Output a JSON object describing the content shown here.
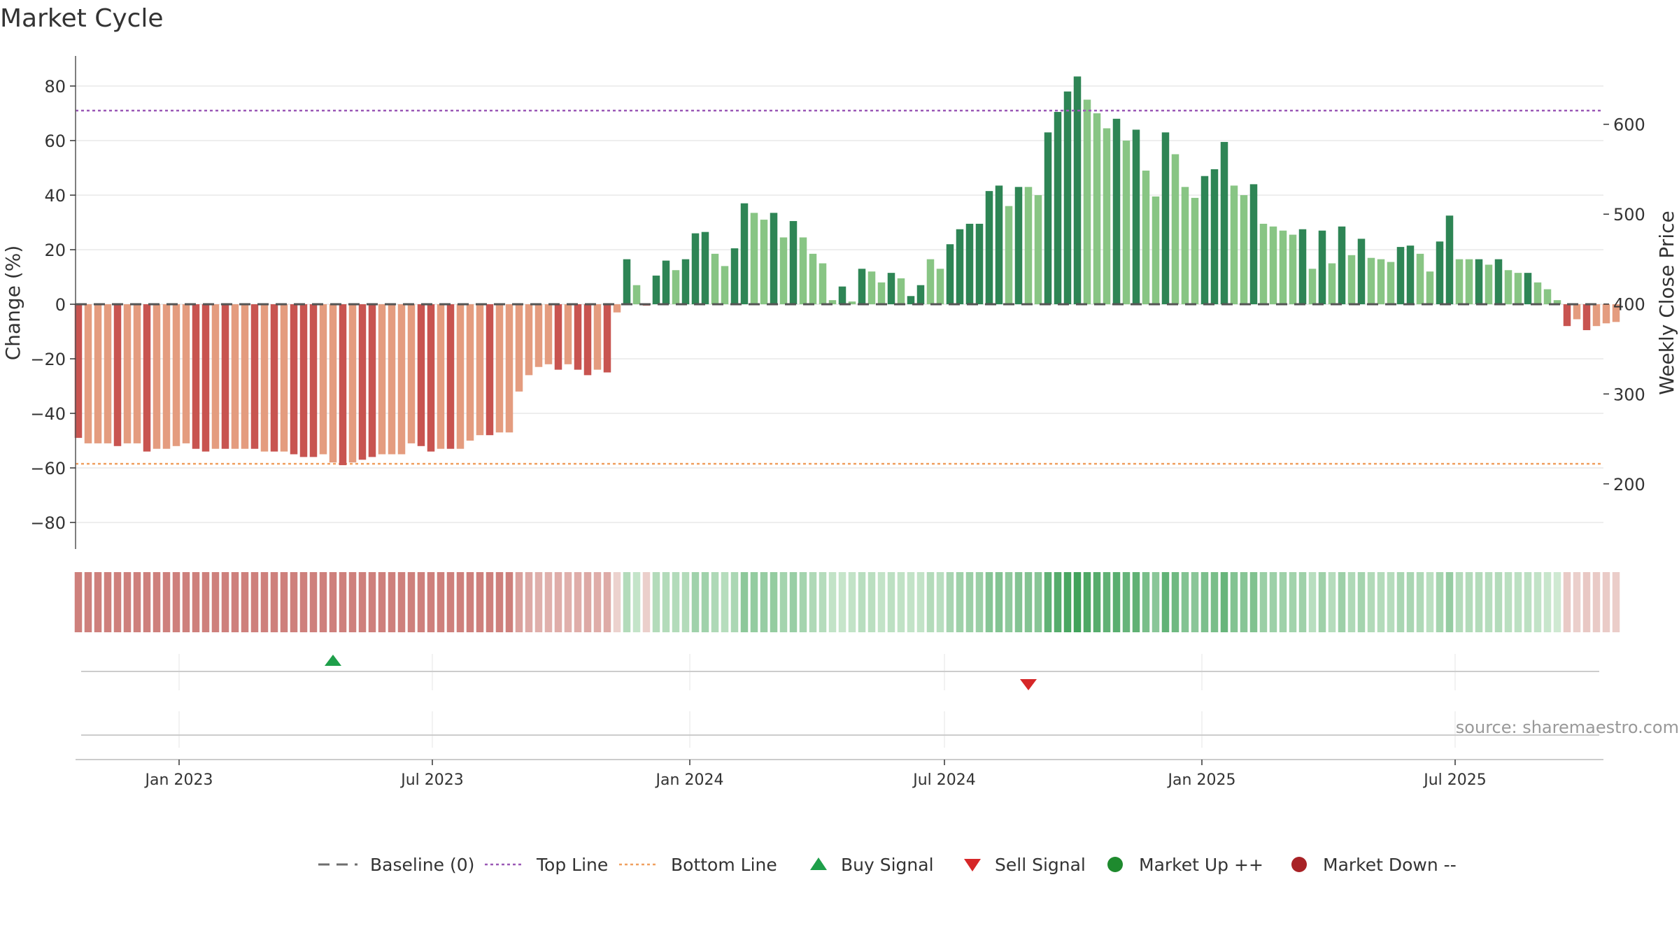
{
  "chart_data": {
    "type": "bar",
    "title": "Market Cycle",
    "ylabel_left": "Change (%)",
    "ylabel_right": "Weekly Close Price",
    "ylim_left": [
      -90,
      90
    ],
    "ylim_right": [
      127.5,
      676
    ],
    "y_ticks_left": [
      "80",
      "60",
      "40",
      "20",
      "0",
      "−20",
      "−40",
      "−60",
      "−80"
    ],
    "y_ticks_left_values": [
      80,
      60,
      40,
      20,
      0,
      -20,
      -40,
      -60,
      -80
    ],
    "y_ticks_right": [
      "600",
      "500",
      "400",
      "300",
      "200"
    ],
    "y_ticks_right_values": [
      600,
      500,
      400,
      300,
      200
    ],
    "x_ticks": [
      "Jan 2023",
      "Jul 2023",
      "Jan 2024",
      "Jul 2024",
      "Jan 2025",
      "Jul 2025"
    ],
    "x_ticks_dates": [
      "2023-01-01",
      "2023-07-01",
      "2024-01-01",
      "2024-07-01",
      "2025-01-01",
      "2025-07-01"
    ],
    "x_range": [
      "2022-10-19",
      "2025-10-15"
    ],
    "first_week": "2022-10-21",
    "week_days": 7,
    "grid": true,
    "top_line": 71,
    "bottom_line": -58.5,
    "baseline": 0,
    "series": [
      {
        "name": "Change (%)",
        "values": [
          -49,
          -51,
          -51,
          -51,
          -52,
          -51,
          -51,
          -54,
          -53,
          -53,
          -52,
          -51,
          -53,
          -54,
          -53,
          -53,
          -53,
          -53,
          -53,
          -54,
          -54,
          -54,
          -55,
          -56,
          -56,
          -55,
          -58,
          -59,
          -58,
          -57,
          -56,
          -55,
          -55,
          -55,
          -51,
          -52,
          -54,
          -53,
          -53,
          -53,
          -50,
          -48,
          -48,
          -47,
          -47,
          -32,
          -26,
          -23,
          -22,
          -24,
          -22,
          -24,
          -26,
          -24,
          -25,
          -3,
          16.5,
          7,
          -0.5,
          10.5,
          16,
          12.5,
          16.5,
          26,
          26.5,
          18.5,
          14,
          20.5,
          37,
          33.5,
          31,
          33.5,
          24.5,
          30.5,
          24.5,
          18.5,
          15,
          1.5,
          6.5,
          1,
          13,
          12,
          8,
          11.5,
          9.5,
          3,
          7,
          16.5,
          13,
          22,
          27.5,
          29.5,
          29.5,
          41.5,
          43.5,
          36,
          43,
          43,
          40,
          63,
          70.5,
          78,
          83.5,
          75,
          70,
          64.5,
          68,
          60,
          64,
          49,
          39.5,
          63,
          55,
          43,
          39,
          47,
          49.5,
          59.5,
          43.5,
          40,
          44,
          29.5,
          28.5,
          27,
          25.5,
          27.5,
          13,
          27,
          15,
          28.5,
          18,
          24,
          17,
          16.5,
          15.5,
          21,
          21.5,
          18.5,
          12,
          23,
          32.5,
          16.5,
          16.5,
          16.5,
          14.5,
          16.5,
          12.5,
          11.5,
          11.5,
          8,
          5.5,
          1.5,
          -8,
          -5.5,
          -9.5,
          -8,
          -7,
          -6.5
        ],
        "shade": [
          "d",
          "l",
          "l",
          "l",
          "d",
          "l",
          "l",
          "d",
          "l",
          "l",
          "l",
          "l",
          "d",
          "d",
          "l",
          "d",
          "l",
          "l",
          "d",
          "l",
          "d",
          "l",
          "d",
          "d",
          "d",
          "l",
          "l",
          "d",
          "l",
          "d",
          "d",
          "l",
          "l",
          "l",
          "l",
          "d",
          "d",
          "l",
          "d",
          "l",
          "l",
          "l",
          "d",
          "l",
          "l",
          "l",
          "l",
          "l",
          "l",
          "d",
          "l",
          "d",
          "d",
          "l",
          "d",
          "l",
          "d",
          "l",
          "d",
          "d",
          "d",
          "l",
          "d",
          "d",
          "d",
          "l",
          "l",
          "d",
          "d",
          "l",
          "l",
          "d",
          "l",
          "d",
          "l",
          "l",
          "l",
          "l",
          "d",
          "l",
          "d",
          "l",
          "l",
          "d",
          "l",
          "d",
          "d",
          "l",
          "l",
          "d",
          "d",
          "d",
          "d",
          "d",
          "d",
          "l",
          "d",
          "l",
          "l",
          "d",
          "d",
          "d",
          "d",
          "l",
          "l",
          "l",
          "d",
          "l",
          "d",
          "l",
          "l",
          "d",
          "l",
          "l",
          "l",
          "d",
          "d",
          "d",
          "l",
          "l",
          "d",
          "l",
          "l",
          "l",
          "l",
          "d",
          "l",
          "d",
          "l",
          "d",
          "l",
          "d",
          "l",
          "l",
          "l",
          "d",
          "d",
          "l",
          "l",
          "d",
          "d",
          "l",
          "l",
          "d",
          "l",
          "d",
          "l",
          "l",
          "d",
          "l",
          "l",
          "l",
          "d",
          "l",
          "d",
          "l",
          "l",
          "l"
        ]
      }
    ],
    "heat_strip": [
      -53,
      -53,
      -53,
      -53,
      -53,
      -53,
      -53,
      -53,
      -53,
      -53,
      -53,
      -53,
      -53,
      -53,
      -53,
      -53,
      -53,
      -53,
      -53,
      -53,
      -53,
      -53,
      -53,
      -53,
      -53,
      -53,
      -56,
      -56,
      -53,
      -53,
      -53,
      -53,
      -53,
      -53,
      -53,
      -53,
      -53,
      -53,
      -53,
      -53,
      -53,
      -48,
      -48,
      -47,
      -47,
      -30,
      -26,
      -23,
      -22,
      -24,
      -22,
      -24,
      -26,
      -24,
      -25,
      -3,
      16,
      7,
      -5,
      16,
      16,
      16,
      16,
      26,
      26,
      18,
      14,
      20,
      37,
      33,
      31,
      33,
      24,
      30,
      24,
      18,
      15,
      8,
      6,
      8,
      13,
      12,
      8,
      11,
      9,
      8,
      8,
      16,
      13,
      22,
      27,
      29,
      29,
      41,
      43,
      36,
      43,
      43,
      40,
      63,
      70,
      78,
      83,
      75,
      70,
      64,
      68,
      60,
      64,
      49,
      39,
      63,
      55,
      43,
      39,
      47,
      49,
      59,
      43,
      40,
      44,
      29,
      28,
      27,
      25,
      27,
      13,
      27,
      15,
      28,
      18,
      24,
      17,
      16,
      15,
      21,
      21,
      18,
      12,
      23,
      32,
      16,
      16,
      16,
      14,
      16,
      12,
      11,
      11,
      8,
      5,
      2,
      -8,
      -5,
      -9,
      -8,
      -7,
      -6
    ],
    "buy_signals": [
      "2023-04-21"
    ],
    "sell_signals": [
      "2024-08-30"
    ],
    "legend": [
      {
        "label": "Baseline (0)",
        "marker": "dash",
        "color": "#6e6e6e"
      },
      {
        "label": "Top Line",
        "marker": "dot-line",
        "color": "#9b59b6"
      },
      {
        "label": "Bottom Line",
        "marker": "dot-line",
        "color": "#f0a060"
      },
      {
        "label": "Buy Signal",
        "marker": "triangle-up",
        "color": "#1e9f4a"
      },
      {
        "label": "Sell Signal",
        "marker": "triangle-down",
        "color": "#d62728"
      },
      {
        "label": "Market Up ++",
        "marker": "circle",
        "color": "#1e8a2e"
      },
      {
        "label": "Market Down --",
        "marker": "circle",
        "color": "#a82226"
      }
    ],
    "legend_position": "bottom-center",
    "source_note": "source: sharemaestro.com",
    "colors": {
      "up_dark": "#2e8555",
      "up_light": "#88c584",
      "down_dark": "#c85450",
      "down_light": "#e49c7f",
      "grid": "#e8e8e8",
      "axis_text": "#333333",
      "baseline": "#555555"
    }
  }
}
